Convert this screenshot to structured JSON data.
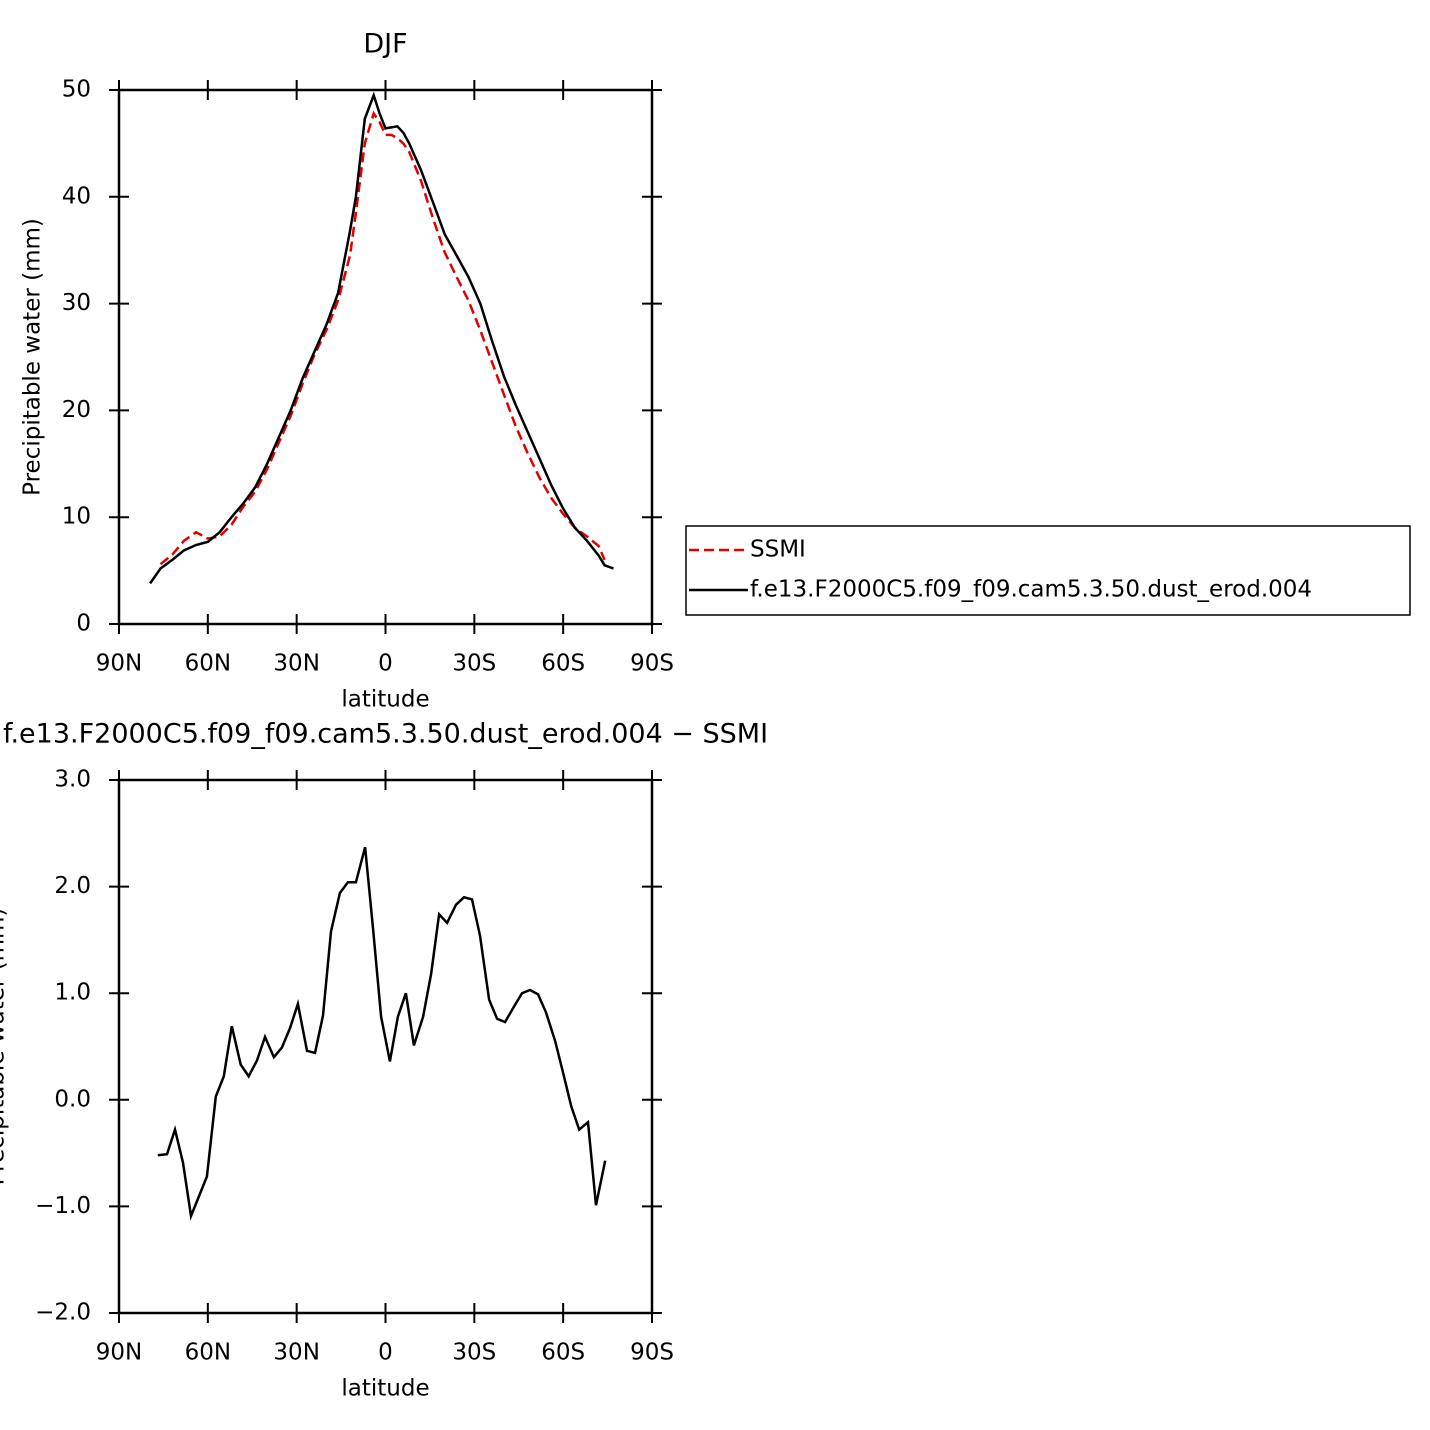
{
  "chart_data": [
    {
      "type": "line",
      "title": "DJF",
      "xlabel": "latitude",
      "ylabel": "Precipitable water (mm)",
      "x": [
        79.5,
        76,
        72,
        68,
        64,
        60,
        56,
        52,
        48,
        44,
        40,
        36,
        32,
        28,
        24,
        20,
        16,
        12,
        10,
        7,
        4,
        2,
        0,
        -2,
        -4,
        -6,
        -8,
        -12,
        -16,
        -20,
        -24,
        -28,
        -32,
        -36,
        -40,
        -44,
        -48,
        -52,
        -56,
        -60,
        -64,
        -68,
        -72,
        -74,
        -77
      ],
      "series": [
        {
          "name": "SSMI",
          "color": "#e00000",
          "linestyle": "dashed",
          "values": [
            null,
            5.6,
            6.5,
            7.8,
            8.6,
            8.0,
            8.2,
            9.3,
            11.0,
            12.4,
            14.5,
            17.0,
            19.5,
            22.5,
            25.2,
            27.5,
            30.3,
            34.5,
            38.5,
            45.0,
            47.8,
            47.0,
            45.8,
            45.8,
            45.5,
            45.0,
            44.2,
            41.5,
            38.0,
            34.8,
            32.5,
            30.3,
            27.5,
            24.5,
            21.5,
            18.5,
            16.0,
            13.7,
            11.8,
            10.3,
            9.0,
            8.2,
            7.3,
            6.0,
            null
          ]
        },
        {
          "name": "f.e13.F2000C5.f09_f09.cam5.3.50.dust_erod.004",
          "color": "#000000",
          "linestyle": "solid",
          "values": [
            3.8,
            5.2,
            6.0,
            6.9,
            7.4,
            7.7,
            8.6,
            10.0,
            11.3,
            12.8,
            15.0,
            17.5,
            20.0,
            23.0,
            25.5,
            28.0,
            31.0,
            36.8,
            40.0,
            47.3,
            49.5,
            47.8,
            46.4,
            46.5,
            46.6,
            46.0,
            45.0,
            42.5,
            39.5,
            36.5,
            34.5,
            32.5,
            30.0,
            26.5,
            23.2,
            20.5,
            18.0,
            15.5,
            13.0,
            10.8,
            9.0,
            7.8,
            6.4,
            5.5,
            5.2
          ]
        }
      ],
      "xlim": [
        90,
        -90
      ],
      "xticks": [
        {
          "value": 90,
          "label": "90N"
        },
        {
          "value": 60,
          "label": "60N"
        },
        {
          "value": 30,
          "label": "30N"
        },
        0,
        {
          "value": -30,
          "label": "30S"
        },
        {
          "value": -60,
          "label": "60S"
        },
        {
          "value": -90,
          "label": "90S"
        }
      ],
      "ylim": [
        0,
        50
      ],
      "yticks": [
        0,
        10,
        20,
        30,
        40,
        50
      ],
      "legend": "right"
    },
    {
      "type": "line",
      "title": "f.e13.F2000C5.f09_f09.cam5.3.50.dust_erod.004 − SSMI",
      "xlabel": "latitude",
      "ylabel": "Precipitable water (mm)",
      "x": [
        76.9,
        73.8,
        71.1,
        68.4,
        65.7,
        60.3,
        57.3,
        54.6,
        51.9,
        48.9,
        46.2,
        43.4,
        40.7,
        37.7,
        35.0,
        32.3,
        29.6,
        26.5,
        23.8,
        21.1,
        18.4,
        15.4,
        12.7,
        10.0,
        6.9,
        4.2,
        1.5,
        -1.5,
        -4.2,
        -6.9,
        -9.6,
        -12.7,
        -15.4,
        -18.1,
        -20.8,
        -23.8,
        -26.5,
        -29.2,
        -31.9,
        -35.0,
        -37.7,
        -40.4,
        -43.1,
        -46.1,
        -48.8,
        -51.5,
        -54.2,
        -57.3,
        -60.0,
        -62.7,
        -65.4,
        -68.4,
        -71.1,
        -74.2
      ],
      "color": "#000000",
      "values": [
        -0.52,
        -0.51,
        -0.28,
        -0.59,
        -1.09,
        -0.72,
        0.03,
        0.22,
        0.69,
        0.33,
        0.22,
        0.37,
        0.59,
        0.4,
        0.49,
        0.67,
        0.9,
        0.46,
        0.44,
        0.79,
        1.58,
        1.94,
        2.04,
        2.04,
        2.37,
        1.6,
        0.78,
        0.36,
        0.78,
        1.0,
        0.51,
        0.78,
        1.18,
        1.74,
        1.66,
        1.83,
        1.9,
        1.88,
        1.54,
        0.94,
        0.76,
        0.73,
        0.86,
        1.0,
        1.03,
        0.99,
        0.82,
        0.55,
        0.25,
        -0.06,
        -0.28,
        -0.21,
        -0.99,
        -0.57
      ],
      "xlim": [
        90,
        -90
      ],
      "xticks": [
        {
          "value": 90,
          "label": "90N"
        },
        {
          "value": 60,
          "label": "60N"
        },
        {
          "value": 30,
          "label": "30N"
        },
        0,
        {
          "value": -30,
          "label": "30S"
        },
        {
          "value": -60,
          "label": "60S"
        },
        {
          "value": -90,
          "label": "90S"
        }
      ],
      "ylim": [
        -2,
        3
      ],
      "yticks": [
        {
          "value": -2,
          "label": "−2.0"
        },
        {
          "value": -1,
          "label": "−1.0"
        },
        {
          "value": 0,
          "label": "0.0"
        },
        {
          "value": 1,
          "label": "1.0"
        },
        {
          "value": 2,
          "label": "2.0"
        },
        {
          "value": 3,
          "label": "3.0"
        }
      ]
    }
  ]
}
